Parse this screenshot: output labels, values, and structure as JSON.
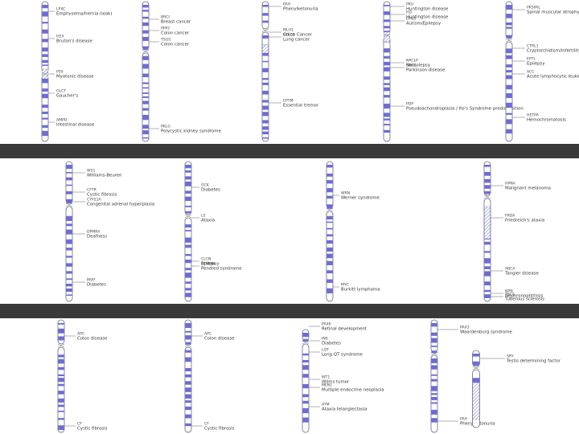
{
  "colors": {
    "band": "#6c6cd8",
    "separator": "#3a3a3a",
    "background": "#ffffff"
  },
  "rows": [
    {
      "panels": [
        {
          "chromosomes": [
            {
              "labels": [
                {
                  "gene": "LPXC",
                  "disease": "Emphysema/hernia (leak)"
                },
                {
                  "gene": "HEX",
                  "disease": "Bruton's disease"
                },
                {
                  "gene": "GLCT",
                  "disease": "Gaucher's"
                },
                {
                  "gene": "AMPD",
                  "disease": "Intestinal disease"
                },
                {
                  "gene": "PSS",
                  "disease": "Myotonic disease"
                }
              ]
            },
            {
              "labels": [
                {
                  "gene": "BRCI",
                  "disease": "Breast cancer"
                },
                {
                  "gene": "PPP2",
                  "disease": "Colon cancer"
                },
                {
                  "gene": "TSGS",
                  "disease": "Colon cancer"
                },
                {
                  "gene": "PKLG",
                  "disease": "Polycystic kidney syndrome"
                }
              ]
            },
            {
              "labels": [
                {
                  "gene": "PAH",
                  "disease": "Phenylketonuria"
                },
                {
                  "gene": "MLH1",
                  "disease": "Colon Cancer"
                },
                {
                  "gene": "SCLC1",
                  "disease": "Lung cancer"
                },
                {
                  "gene": "EPTM",
                  "disease": "Essential tremor"
                }
              ]
            },
            {
              "labels": [
                {
                  "gene": "PKU",
                  "disease": "Huntington disease"
                },
                {
                  "gene": "HD",
                  "disease": "Huntington disease"
                },
                {
                  "gene": "EPNS",
                  "disease": "Autism/Epilepsy"
                },
                {
                  "gene": "NRCLP",
                  "disease": "Narcolepsy"
                },
                {
                  "gene": "SNCA",
                  "disease": "Parkinson disease"
                },
                {
                  "gene": "PDP",
                  "disease": "Pseudoachondroplasia / Ito's Syndrome predisposition"
                }
              ]
            },
            {
              "labels": [
                {
                  "gene": "PKSPAL",
                  "disease": "Spinal muscular atrophy 1"
                },
                {
                  "gene": "CTRL1",
                  "disease": "Cryptorchidism/infertility"
                },
                {
                  "gene": "EPTL",
                  "disease": "Epilepsy"
                },
                {
                  "gene": "HETPA",
                  "disease": "Hemochromatosis"
                },
                {
                  "gene": "ACC",
                  "disease": "Acute lymphocytic leukemia"
                }
              ]
            }
          ]
        }
      ]
    },
    {
      "panels": [
        {
          "chromosomes": [
            {
              "labels": [
                {
                  "gene": "WS1",
                  "disease": "Williams-Beuren"
                },
                {
                  "gene": "CFTR",
                  "disease": "Cystic fibrosis"
                },
                {
                  "gene": "CYP21A",
                  "disease": "Congenital adrenal hyperplasia"
                },
                {
                  "gene": "MVP",
                  "disease": "Diabetes"
                },
                {
                  "gene": "DPMRA",
                  "disease": "Deafness"
                }
              ]
            },
            {
              "labels": [
                {
                  "gene": "GCK",
                  "disease": "Diabetes"
                },
                {
                  "gene": "LS",
                  "disease": "Ataxia"
                },
                {
                  "gene": "PENDIN",
                  "disease": "Pendred syndrome"
                },
                {
                  "gene": "CLCN",
                  "disease": "Epilepsy"
                }
              ]
            },
            {
              "labels": [
                {
                  "gene": "WRN",
                  "disease": "Werner syndrome"
                },
                {
                  "gene": "MYC",
                  "disease": "Burkitt lymphoma"
                }
              ]
            },
            {
              "labels": [
                {
                  "gene": "HPNA",
                  "disease": "Malignant melanoma"
                },
                {
                  "gene": "FRDA",
                  "disease": "Friedreich's ataxia"
                },
                {
                  "gene": "ABCA",
                  "disease": "Tangier disease"
                },
                {
                  "gene": "TSC1",
                  "disease": "Tuberous sclerosis"
                },
                {
                  "gene": "NPN",
                  "disease": "Nephronophthisis"
                }
              ]
            }
          ]
        }
      ]
    },
    {
      "panels": [
        {
          "chromosomes": [
            {
              "labels": [
                {
                  "gene": "APC",
                  "disease": "Colon disease"
                },
                {
                  "gene": "CF",
                  "disease": "Cystic fibrosis"
                }
              ]
            },
            {
              "labels": [
                {
                  "gene": "APC",
                  "disease": "Colon disease"
                },
                {
                  "gene": "CF",
                  "disease": "Cystic fibrosis"
                }
              ]
            },
            {
              "labels": [
                {
                  "gene": "PAX6",
                  "disease": "Retinal development"
                },
                {
                  "gene": "INS",
                  "disease": "Diabetes"
                },
                {
                  "gene": "LQT",
                  "disease": "Long QT syndrome"
                },
                {
                  "gene": "WT1",
                  "disease": "Wilms tumor"
                },
                {
                  "gene": "MEN1",
                  "disease": "Multiple endocrine neoplasia"
                },
                {
                  "gene": "ATM",
                  "disease": "Ataxia telangiectasia"
                }
              ]
            },
            {
              "labels": [
                {
                  "gene": "PAX3",
                  "disease": "Waardenburg syndrome"
                },
                {
                  "gene": "PAH",
                  "disease": "Phenylketonuria"
                }
              ]
            },
            {
              "labels": [
                {
                  "gene": "SRY",
                  "disease": "Testis determining factor"
                }
              ]
            }
          ]
        }
      ]
    }
  ]
}
